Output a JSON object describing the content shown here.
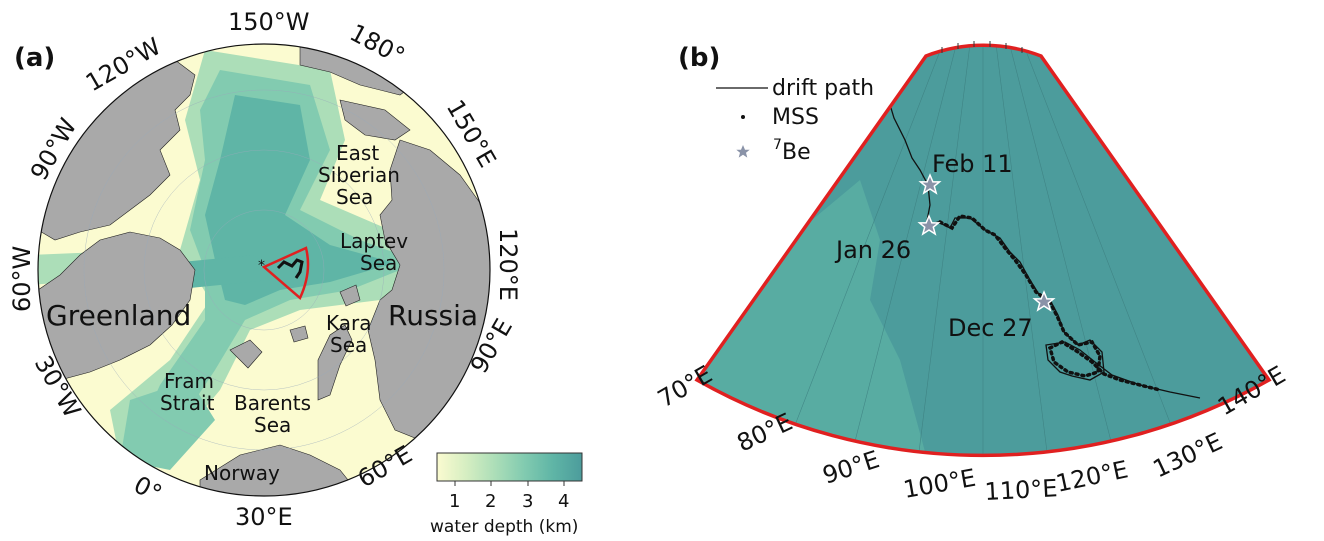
{
  "panel_a": {
    "label": "(a)",
    "lon_labels": [
      "150°W",
      "180°",
      "150°E",
      "120°E",
      "90°E",
      "60°E",
      "30°E",
      "0°",
      "30°W",
      "60°W",
      "90°W",
      "120°W"
    ],
    "regions": [
      "East Siberian Sea",
      "Laptev Sea",
      "Kara Sea",
      "Barents Sea",
      "Fram Strait",
      "Greenland",
      "Russia",
      "Norway"
    ],
    "region_lines": {
      "east_siberian": [
        "East",
        "Siberian",
        "Sea"
      ],
      "laptev": [
        "Laptev",
        "Sea"
      ],
      "kara": [
        "Kara",
        "Sea"
      ],
      "barents": [
        "Barents",
        "Sea"
      ],
      "fram": [
        "Fram",
        "Strait"
      ],
      "greenland": "Greenland",
      "russia": "Russia",
      "norway": "Norway"
    },
    "colorbar": {
      "ticks": [
        "1",
        "2",
        "3",
        "4"
      ],
      "label": "water depth (km)",
      "range_km": [
        0.5,
        4.5
      ],
      "colors": [
        "#fbfbd0",
        "#d6eec2",
        "#acdeb8",
        "#82cbb0",
        "#5fb5a6",
        "#4c9c9c"
      ]
    }
  },
  "panel_b": {
    "label": "(b)",
    "lon_labels": [
      "70°E",
      "80°E",
      "90°E",
      "100°E",
      "110°E",
      "120°E",
      "130°E",
      "140°E"
    ],
    "legend": {
      "drift_path": "drift path",
      "mss": "MSS",
      "be7_sup": "7",
      "be7": "Be"
    },
    "dates": [
      "Feb 11",
      "Jan 26",
      "Dec 27"
    ],
    "colors": {
      "frame": "#e02020",
      "star_fill": "#8a93a8",
      "path": "#111111"
    }
  }
}
